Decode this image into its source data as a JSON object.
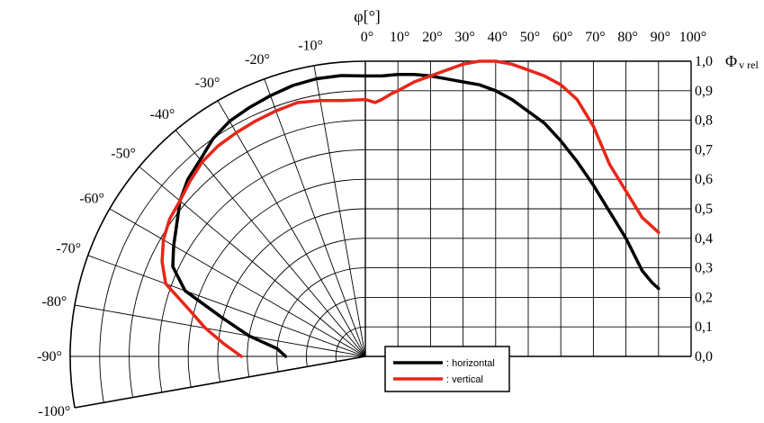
{
  "chart_data": {
    "type": "line",
    "subtype": "polar-and-cartesian radiation pattern",
    "xlabel": "φ[°]",
    "ylabel": "Φ",
    "ylabel_sub": "v rel",
    "x_ticks": [
      "0°",
      "10°",
      "20°",
      "30°",
      "40°",
      "50°",
      "60°",
      "70°",
      "80°",
      "90°",
      "100°"
    ],
    "y_ticks": [
      "0,0",
      "0,1",
      "0,2",
      "0,3",
      "0,4",
      "0,5",
      "0,6",
      "0,7",
      "0,8",
      "0,9",
      "1,0"
    ],
    "polar_angle_labels": [
      "-10°",
      "-20°",
      "-30°",
      "-40°",
      "-50°",
      "-60°",
      "-70°",
      "-80°",
      "-90°",
      "-100°"
    ],
    "xlim": [
      0,
      100
    ],
    "ylim": [
      0,
      1.0
    ],
    "grid": true,
    "legend_position": "bottom-center",
    "series": [
      {
        "name": ": horizontal",
        "color": "#000000",
        "polar": [
          [
            -90,
            0.27
          ],
          [
            -85,
            0.3
          ],
          [
            -80,
            0.4
          ],
          [
            -75,
            0.5
          ],
          [
            -70,
            0.65
          ],
          [
            -65,
            0.72
          ],
          [
            -60,
            0.75
          ],
          [
            -55,
            0.78
          ],
          [
            -50,
            0.82
          ],
          [
            -45,
            0.85
          ],
          [
            -40,
            0.87
          ],
          [
            -35,
            0.9
          ],
          [
            -30,
            0.92
          ],
          [
            -25,
            0.93
          ],
          [
            -20,
            0.94
          ],
          [
            -15,
            0.95
          ],
          [
            -10,
            0.955
          ],
          [
            -5,
            0.955
          ],
          [
            0,
            0.95
          ]
        ],
        "cartesian": [
          [
            0,
            0.95
          ],
          [
            5,
            0.95
          ],
          [
            10,
            0.955
          ],
          [
            15,
            0.955
          ],
          [
            20,
            0.95
          ],
          [
            25,
            0.94
          ],
          [
            30,
            0.93
          ],
          [
            35,
            0.92
          ],
          [
            40,
            0.9
          ],
          [
            45,
            0.87
          ],
          [
            50,
            0.83
          ],
          [
            55,
            0.79
          ],
          [
            60,
            0.73
          ],
          [
            65,
            0.66
          ],
          [
            70,
            0.58
          ],
          [
            75,
            0.49
          ],
          [
            80,
            0.4
          ],
          [
            85,
            0.29
          ],
          [
            88,
            0.25
          ],
          [
            90,
            0.23
          ]
        ]
      },
      {
        "name": ": vertical",
        "color": "#e8261a",
        "polar": [
          [
            -90,
            0.42
          ],
          [
            -85,
            0.48
          ],
          [
            -80,
            0.55
          ],
          [
            -75,
            0.62
          ],
          [
            -70,
            0.72
          ],
          [
            -65,
            0.76
          ],
          [
            -60,
            0.79
          ],
          [
            -55,
            0.81
          ],
          [
            -50,
            0.82
          ],
          [
            -45,
            0.84
          ],
          [
            -40,
            0.86
          ],
          [
            -35,
            0.87
          ],
          [
            -30,
            0.875
          ],
          [
            -25,
            0.88
          ],
          [
            -20,
            0.885
          ],
          [
            -15,
            0.89
          ],
          [
            -10,
            0.88
          ],
          [
            -5,
            0.87
          ],
          [
            0,
            0.87
          ]
        ],
        "cartesian": [
          [
            0,
            0.87
          ],
          [
            3,
            0.86
          ],
          [
            5,
            0.87
          ],
          [
            8,
            0.89
          ],
          [
            10,
            0.9
          ],
          [
            15,
            0.93
          ],
          [
            20,
            0.95
          ],
          [
            25,
            0.97
          ],
          [
            30,
            0.99
          ],
          [
            35,
            1.0
          ],
          [
            40,
            1.0
          ],
          [
            45,
            0.99
          ],
          [
            50,
            0.97
          ],
          [
            55,
            0.95
          ],
          [
            60,
            0.92
          ],
          [
            65,
            0.87
          ],
          [
            70,
            0.78
          ],
          [
            75,
            0.65
          ],
          [
            80,
            0.56
          ],
          [
            85,
            0.47
          ],
          [
            90,
            0.42
          ]
        ]
      }
    ]
  }
}
